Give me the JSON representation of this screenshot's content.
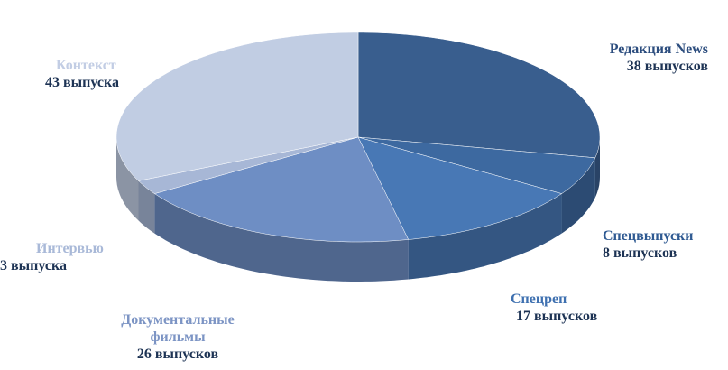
{
  "chart_data": {
    "type": "pie",
    "categories": [
      "Редакция News",
      "Спецвыпуски",
      "Спецреп",
      "Документальные фильмы",
      "Интервью",
      "Контекст"
    ],
    "values": [
      38,
      8,
      17,
      26,
      3,
      43
    ],
    "value_labels": [
      "38 выпусков",
      "8 выпусков",
      "17 выпусков",
      "26 выпусков",
      "3 выпуска",
      "43 выпуска"
    ],
    "colors": [
      "#395e8e",
      "#3d69a0",
      "#4878b5",
      "#6e8ec4",
      "#a7b7d6",
      "#c1cde3"
    ]
  }
}
